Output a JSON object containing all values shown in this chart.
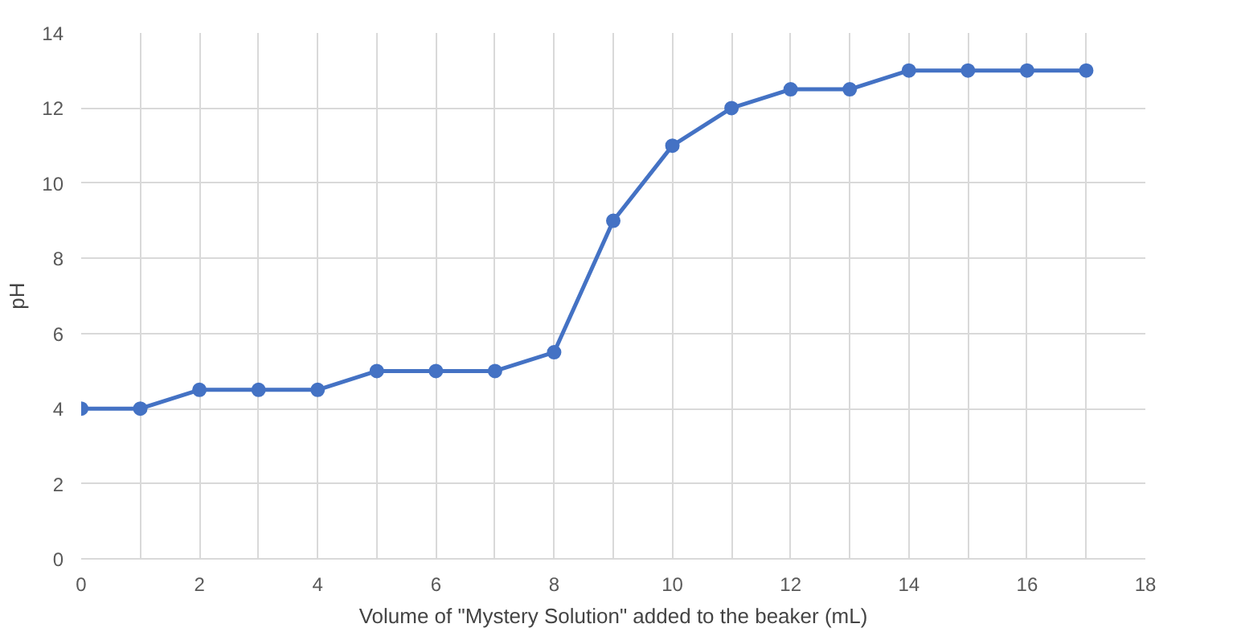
{
  "chart_data": {
    "type": "line",
    "xlabel": "Volume of \"Mystery Solution\" added to the beaker (mL)",
    "ylabel": "pH",
    "x": [
      0,
      1,
      2,
      3,
      4,
      5,
      6,
      7,
      8,
      9,
      10,
      11,
      12,
      13,
      14,
      15,
      16,
      17
    ],
    "series": [
      {
        "color": "#4472c4",
        "values": [
          4,
          4,
          4.5,
          4.5,
          4.5,
          5,
          5,
          5,
          5.5,
          9,
          11,
          12,
          12.5,
          12.5,
          13,
          13,
          13,
          13
        ]
      }
    ],
    "xlim": [
      0,
      18
    ],
    "ylim": [
      0,
      14
    ],
    "xticks": [
      0,
      {
        "value": 1,
        "label": null
      },
      2,
      {
        "value": 3,
        "label": null
      },
      4,
      {
        "value": 5,
        "label": null
      },
      6,
      {
        "value": 7,
        "label": null
      },
      8,
      {
        "value": 9,
        "label": null
      },
      10,
      {
        "value": 11,
        "label": null
      },
      12,
      {
        "value": 13,
        "label": null
      },
      14,
      {
        "value": 15,
        "label": null
      },
      16,
      {
        "value": 17,
        "label": null
      },
      18
    ],
    "yticks": [
      0,
      2,
      4,
      6,
      8,
      10,
      12,
      14
    ],
    "grid": true,
    "marker": "circle",
    "line_style": "solid"
  }
}
